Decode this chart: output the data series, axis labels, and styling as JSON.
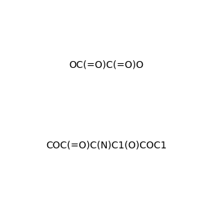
{
  "smiles_top": "OC(=O)C(=O)O",
  "smiles_bottom": "COC(=O)C(N)C1(O)COC1",
  "background_color": "#e8eaec",
  "title": "",
  "figsize": [
    3.0,
    3.0
  ],
  "dpi": 100
}
